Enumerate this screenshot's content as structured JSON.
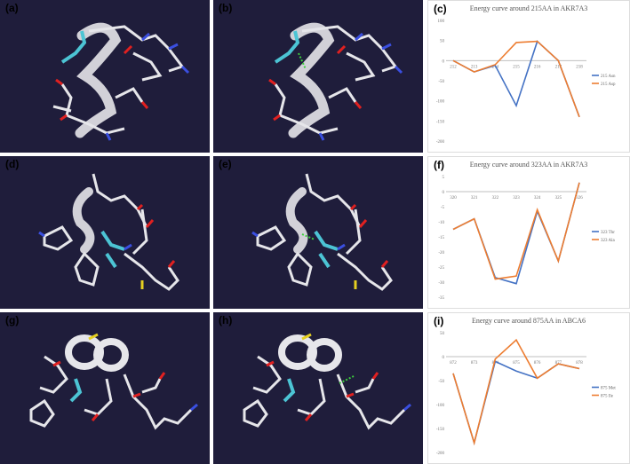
{
  "panels": {
    "a": {
      "label": "(a)"
    },
    "b": {
      "label": "(b)"
    },
    "d": {
      "label": "(d)"
    },
    "e": {
      "label": "(e)"
    },
    "g": {
      "label": "(g)"
    },
    "h": {
      "label": "(h)"
    }
  },
  "colors": {
    "molecule_background": "#1f1d3b",
    "stick_white": "#e6e6ea",
    "stick_cyan": "#4cc4d4",
    "stick_red": "#e02020",
    "stick_blue": "#3a4fe0",
    "stick_yellow": "#e6d020",
    "hbond_green": "#3ccf3c",
    "series_blue": "#4472c4",
    "series_orange": "#ed7d31"
  },
  "chart_data": [
    {
      "panel_label": "(c)",
      "type": "line",
      "title": "Energy curve around 215AA in AKR7A3",
      "categories": [
        "212",
        "213",
        "214",
        "215",
        "216",
        "217",
        "218"
      ],
      "yticks": [
        "100",
        "50",
        "0",
        "-50",
        "-100",
        "-150",
        "-200"
      ],
      "ylim": [
        -200,
        100
      ],
      "xlabel": "",
      "ylabel": "",
      "legend_position": "right",
      "grid": false,
      "series": [
        {
          "name": "215 Asn",
          "color": "#4472c4",
          "values": [
            0,
            -28,
            -12,
            -112,
            48,
            0,
            -140
          ]
        },
        {
          "name": "215 Asp",
          "color": "#ed7d31",
          "values": [
            0,
            -28,
            -10,
            45,
            48,
            0,
            -140
          ]
        }
      ]
    },
    {
      "panel_label": "(f)",
      "type": "line",
      "title": "Energy curve around 323AA in AKR7A3",
      "categories": [
        "320",
        "321",
        "322",
        "323",
        "324",
        "325",
        "326"
      ],
      "yticks": [
        "5",
        "0",
        "-5",
        "-10",
        "-15",
        "-20",
        "-25",
        "-30",
        "-35"
      ],
      "ylim": [
        -35,
        5
      ],
      "xlabel": "",
      "ylabel": "",
      "legend_position": "right",
      "grid": false,
      "series": [
        {
          "name": "323 Thr",
          "color": "#4472c4",
          "values": [
            -12.5,
            -9,
            -28.5,
            -30.5,
            -6.5,
            -23,
            3
          ]
        },
        {
          "name": "323 Ala",
          "color": "#ed7d31",
          "values": [
            -12.5,
            -9,
            -29,
            -28,
            -6,
            -23,
            3
          ]
        }
      ]
    },
    {
      "panel_label": "(i)",
      "type": "line",
      "title": "Energy curve around 875AA in ABCA6",
      "categories": [
        "872",
        "873",
        "874",
        "875",
        "876",
        "877",
        "878"
      ],
      "yticks": [
        "50",
        "0",
        "-50",
        "-100",
        "-150",
        "-200"
      ],
      "ylim": [
        -200,
        50
      ],
      "xlabel": "",
      "ylabel": "",
      "legend_position": "right",
      "grid": false,
      "series": [
        {
          "name": "875 Met",
          "color": "#4472c4",
          "values": [
            -35,
            -180,
            -10,
            -30,
            -45,
            -15,
            -25
          ]
        },
        {
          "name": "875 Ile",
          "color": "#ed7d31",
          "values": [
            -35,
            -180,
            -5,
            35,
            -45,
            -15,
            -25
          ]
        }
      ]
    }
  ]
}
